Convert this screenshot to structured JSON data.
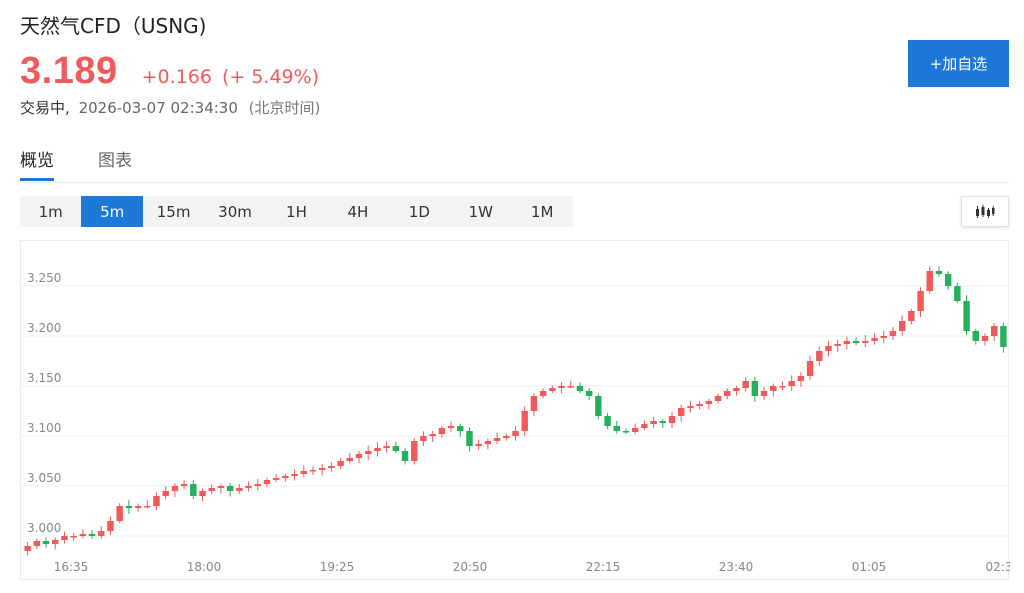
{
  "header": {
    "title": "天然气CFD（USNG)",
    "price": "3.189",
    "change": "+0.166",
    "change_pct": "(+ 5.49%)",
    "status": "交易中,",
    "timestamp": "2026-03-07 02:34:30",
    "timezone": "(北京时间)"
  },
  "actions": {
    "add_watchlist_label": "+加自选"
  },
  "tabs": [
    {
      "label": "概览",
      "active": true
    },
    {
      "label": "图表",
      "active": false
    }
  ],
  "periods": [
    {
      "label": "1m",
      "active": false
    },
    {
      "label": "5m",
      "active": true
    },
    {
      "label": "15m",
      "active": false
    },
    {
      "label": "30m",
      "active": false
    },
    {
      "label": "1H",
      "active": false
    },
    {
      "label": "4H",
      "active": false
    },
    {
      "label": "1D",
      "active": false
    },
    {
      "label": "1W",
      "active": false
    },
    {
      "label": "1M",
      "active": false
    }
  ],
  "chart_type_icon": "candlestick-icon",
  "colors": {
    "up": "#f05a5a",
    "down": "#26b05c",
    "accent": "#1e78d7"
  },
  "chart_data": {
    "type": "candlestick",
    "interval": "5m",
    "title": "",
    "ylim": [
      2.985,
      3.285
    ],
    "y_ticks": [
      "3.000",
      "3.050",
      "3.100",
      "3.150",
      "3.200",
      "3.250"
    ],
    "x_ticks": [
      "16:35",
      "18:00",
      "19:25",
      "20:50",
      "22:15",
      "23:40",
      "01:05",
      "02:3"
    ],
    "grid": true,
    "close_series_approx": [
      2.99,
      2.995,
      2.992,
      2.996,
      3.0,
      3.0,
      3.002,
      3.0,
      3.005,
      3.015,
      3.03,
      3.028,
      3.03,
      3.03,
      3.04,
      3.045,
      3.05,
      3.052,
      3.04,
      3.045,
      3.048,
      3.05,
      3.045,
      3.048,
      3.05,
      3.052,
      3.056,
      3.058,
      3.06,
      3.062,
      3.065,
      3.066,
      3.068,
      3.07,
      3.075,
      3.078,
      3.082,
      3.085,
      3.088,
      3.09,
      3.085,
      3.075,
      3.095,
      3.1,
      3.102,
      3.108,
      3.11,
      3.105,
      3.09,
      3.092,
      3.095,
      3.098,
      3.1,
      3.105,
      3.125,
      3.14,
      3.145,
      3.148,
      3.15,
      3.15,
      3.145,
      3.14,
      3.12,
      3.11,
      3.105,
      3.104,
      3.108,
      3.112,
      3.115,
      3.113,
      3.12,
      3.128,
      3.13,
      3.132,
      3.135,
      3.14,
      3.145,
      3.148,
      3.155,
      3.14,
      3.145,
      3.15,
      3.15,
      3.155,
      3.16,
      3.175,
      3.185,
      3.19,
      3.192,
      3.195,
      3.193,
      3.195,
      3.198,
      3.2,
      3.205,
      3.215,
      3.225,
      3.245,
      3.265,
      3.262,
      3.25,
      3.235,
      3.205,
      3.195,
      3.2,
      3.21,
      3.189
    ]
  }
}
